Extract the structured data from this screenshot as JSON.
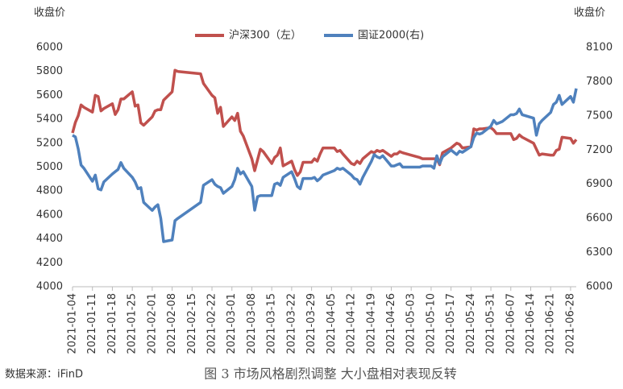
{
  "chart_data": {
    "type": "line",
    "y_label": "收盘价",
    "y2_label": "收盘价",
    "caption": "图 3 市场风格剧烈调整 大小盘相对表现反转",
    "source": "数据来源：iFinD",
    "x": [
      "2021-01-04",
      "2021-01-05",
      "2021-01-06",
      "2021-01-07",
      "2021-01-08",
      "2021-01-11",
      "2021-01-12",
      "2021-01-13",
      "2021-01-14",
      "2021-01-15",
      "2021-01-18",
      "2021-01-19",
      "2021-01-20",
      "2021-01-21",
      "2021-01-22",
      "2021-01-25",
      "2021-01-26",
      "2021-01-27",
      "2021-01-28",
      "2021-01-29",
      "2021-02-01",
      "2021-02-02",
      "2021-02-03",
      "2021-02-04",
      "2021-02-05",
      "2021-02-08",
      "2021-02-09",
      "2021-02-10",
      "2021-02-18",
      "2021-02-19",
      "2021-02-22",
      "2021-02-23",
      "2021-02-24",
      "2021-02-25",
      "2021-02-26",
      "2021-03-01",
      "2021-03-02",
      "2021-03-03",
      "2021-03-04",
      "2021-03-05",
      "2021-03-08",
      "2021-03-09",
      "2021-03-10",
      "2021-03-11",
      "2021-03-12",
      "2021-03-15",
      "2021-03-16",
      "2021-03-17",
      "2021-03-18",
      "2021-03-19",
      "2021-03-22",
      "2021-03-23",
      "2021-03-24",
      "2021-03-25",
      "2021-03-26",
      "2021-03-29",
      "2021-03-30",
      "2021-03-31",
      "2021-04-01",
      "2021-04-02",
      "2021-04-06",
      "2021-04-07",
      "2021-04-08",
      "2021-04-09",
      "2021-04-12",
      "2021-04-13",
      "2021-04-14",
      "2021-04-15",
      "2021-04-16",
      "2021-04-19",
      "2021-04-20",
      "2021-04-21",
      "2021-04-22",
      "2021-04-23",
      "2021-04-26",
      "2021-04-27",
      "2021-04-28",
      "2021-04-29",
      "2021-04-30",
      "2021-05-06",
      "2021-05-07",
      "2021-05-10",
      "2021-05-11",
      "2021-05-12",
      "2021-05-13",
      "2021-05-14",
      "2021-05-17",
      "2021-05-18",
      "2021-05-19",
      "2021-05-20",
      "2021-05-21",
      "2021-05-24",
      "2021-05-25",
      "2021-05-26",
      "2021-05-27",
      "2021-05-28",
      "2021-05-31",
      "2021-06-01",
      "2021-06-02",
      "2021-06-03",
      "2021-06-04",
      "2021-06-07",
      "2021-06-08",
      "2021-06-09",
      "2021-06-10",
      "2021-06-11",
      "2021-06-15",
      "2021-06-16",
      "2021-06-17",
      "2021-06-18",
      "2021-06-21",
      "2021-06-22",
      "2021-06-23",
      "2021-06-24",
      "2021-06-25",
      "2021-06-28",
      "2021-06-29",
      "2021-06-30"
    ],
    "series": [
      {
        "name": "沪深300（左）",
        "color": "#c0504d",
        "axis": "y",
        "values": [
          5286,
          5374,
          5430,
          5520,
          5500,
          5460,
          5600,
          5590,
          5470,
          5490,
          5530,
          5440,
          5480,
          5570,
          5570,
          5630,
          5510,
          5520,
          5370,
          5350,
          5420,
          5470,
          5480,
          5480,
          5560,
          5630,
          5810,
          5800,
          5780,
          5700,
          5600,
          5580,
          5450,
          5500,
          5340,
          5420,
          5390,
          5450,
          5300,
          5260,
          5070,
          4970,
          5060,
          5150,
          5130,
          5030,
          5080,
          5100,
          5160,
          5010,
          5050,
          4980,
          4930,
          4960,
          5040,
          5040,
          5070,
          5050,
          5110,
          5160,
          5160,
          5130,
          5140,
          5110,
          5030,
          5020,
          5050,
          5030,
          5070,
          5130,
          5120,
          5140,
          5130,
          5140,
          5090,
          5110,
          5110,
          5130,
          5120,
          5080,
          5070,
          5070,
          5070,
          5070,
          5020,
          5120,
          5160,
          5180,
          5200,
          5190,
          5160,
          5170,
          5320,
          5310,
          5320,
          5320,
          5330,
          5310,
          5280,
          5280,
          5280,
          5280,
          5230,
          5240,
          5270,
          5250,
          5200,
          5150,
          5100,
          5110,
          5100,
          5100,
          5140,
          5150,
          5250,
          5240,
          5200,
          5230
        ]
      },
      {
        "name": "国证2000(右)",
        "color": "#4f81bd",
        "axis": "y2",
        "values": [
          7330,
          7315,
          7210,
          7068,
          7040,
          6926,
          6980,
          6860,
          6850,
          6920,
          6990,
          7010,
          7030,
          7090,
          7040,
          6960,
          6920,
          6860,
          6870,
          6740,
          6670,
          6700,
          6720,
          6600,
          6396,
          6410,
          6580,
          6600,
          6740,
          6890,
          6940,
          6900,
          6880,
          6870,
          6820,
          6880,
          6940,
          7040,
          6990,
          7010,
          6880,
          6672,
          6790,
          6800,
          6800,
          6800,
          6900,
          6910,
          6890,
          6960,
          7010,
          6950,
          6880,
          6860,
          6950,
          6950,
          6960,
          6930,
          6950,
          6980,
          7020,
          7040,
          7030,
          7040,
          6980,
          6950,
          6940,
          6900,
          6960,
          7100,
          7160,
          7140,
          7130,
          7150,
          7060,
          7060,
          7070,
          7080,
          7050,
          7050,
          7060,
          7060,
          7040,
          7150,
          7080,
          7140,
          7200,
          7180,
          7160,
          7190,
          7180,
          7230,
          7310,
          7350,
          7340,
          7350,
          7410,
          7460,
          7430,
          7440,
          7450,
          7510,
          7510,
          7520,
          7560,
          7510,
          7480,
          7330,
          7430,
          7460,
          7530,
          7600,
          7620,
          7680,
          7600,
          7670,
          7620,
          7740
        ]
      }
    ],
    "xlim": [
      "2021-01-04",
      "2021-06-30"
    ],
    "xticks": [
      "2021-01-04",
      "2021-01-11",
      "2021-01-18",
      "2021-01-25",
      "2021-02-01",
      "2021-02-08",
      "2021-02-15",
      "2021-02-22",
      "2021-03-01",
      "2021-03-08",
      "2021-03-15",
      "2021-03-22",
      "2021-03-29",
      "2021-04-05",
      "2021-04-12",
      "2021-04-19",
      "2021-04-26",
      "2021-05-03",
      "2021-05-10",
      "2021-05-17",
      "2021-05-24",
      "2021-05-31",
      "2021-06-07",
      "2021-06-14",
      "2021-06-21",
      "2021-06-28"
    ],
    "ylim": [
      4000,
      6000
    ],
    "yticks": [
      4000,
      4200,
      4400,
      4600,
      4800,
      5000,
      5200,
      5400,
      5600,
      5800,
      6000
    ],
    "y2lim": [
      6000,
      8100
    ],
    "y2ticks": [
      6000,
      6300,
      6600,
      6900,
      7200,
      7500,
      7800,
      8100
    ],
    "legend": "top"
  }
}
